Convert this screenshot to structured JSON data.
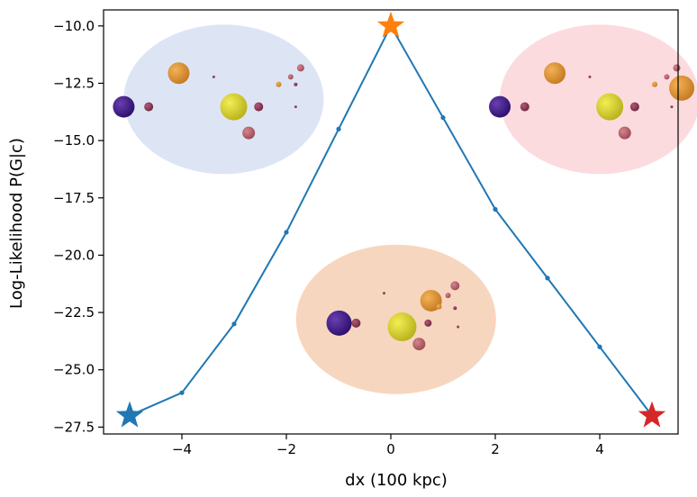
{
  "chart_data": {
    "type": "line",
    "title": "",
    "xlabel": "dx (100 kpc)",
    "ylabel": "Log-Likelihood P(G|c)",
    "xlim": [
      -5.5,
      5.5
    ],
    "ylim": [
      -27.8,
      -9.3
    ],
    "x_ticks": [
      -4,
      -2,
      0,
      2,
      4
    ],
    "y_ticks": [
      -10.0,
      -12.5,
      -15.0,
      -17.5,
      -20.0,
      -22.5,
      -25.0,
      -27.5
    ],
    "x_tick_labels": [
      "−4",
      "−2",
      "0",
      "2",
      "4"
    ],
    "y_tick_labels": [
      "−10.0",
      "−12.5",
      "−15.0",
      "−17.5",
      "−20.0",
      "−22.5",
      "−25.0",
      "−27.5"
    ],
    "grid": false,
    "series": [
      {
        "name": "log-likelihood",
        "color": "#1f77b4",
        "x": [
          -5,
          -4,
          -3,
          -2,
          -1,
          0,
          1,
          2,
          3,
          4,
          5
        ],
        "y": [
          -27.0,
          -26.0,
          -23.0,
          -19.0,
          -14.5,
          -10.0,
          -14.0,
          -18.0,
          -21.0,
          -24.0,
          -27.0
        ]
      }
    ],
    "highlight_markers": [
      {
        "x": -5,
        "y": -27.0,
        "marker": "star",
        "color": "#1f77b4"
      },
      {
        "x": 0,
        "y": -10.0,
        "marker": "star",
        "color": "#ff7f0e"
      },
      {
        "x": 5,
        "y": -27.0,
        "marker": "star",
        "color": "#d62728"
      }
    ],
    "insets": [
      {
        "name": "left-group",
        "color": "#d7e0f3",
        "center": [
          -3.2,
          -13.2
        ]
      },
      {
        "name": "right-group",
        "color": "#fcd5d9",
        "center": [
          4.0,
          -13.2
        ]
      },
      {
        "name": "center-group",
        "color": "#f6cfb5",
        "center": [
          0.1,
          -22.8
        ]
      }
    ]
  }
}
